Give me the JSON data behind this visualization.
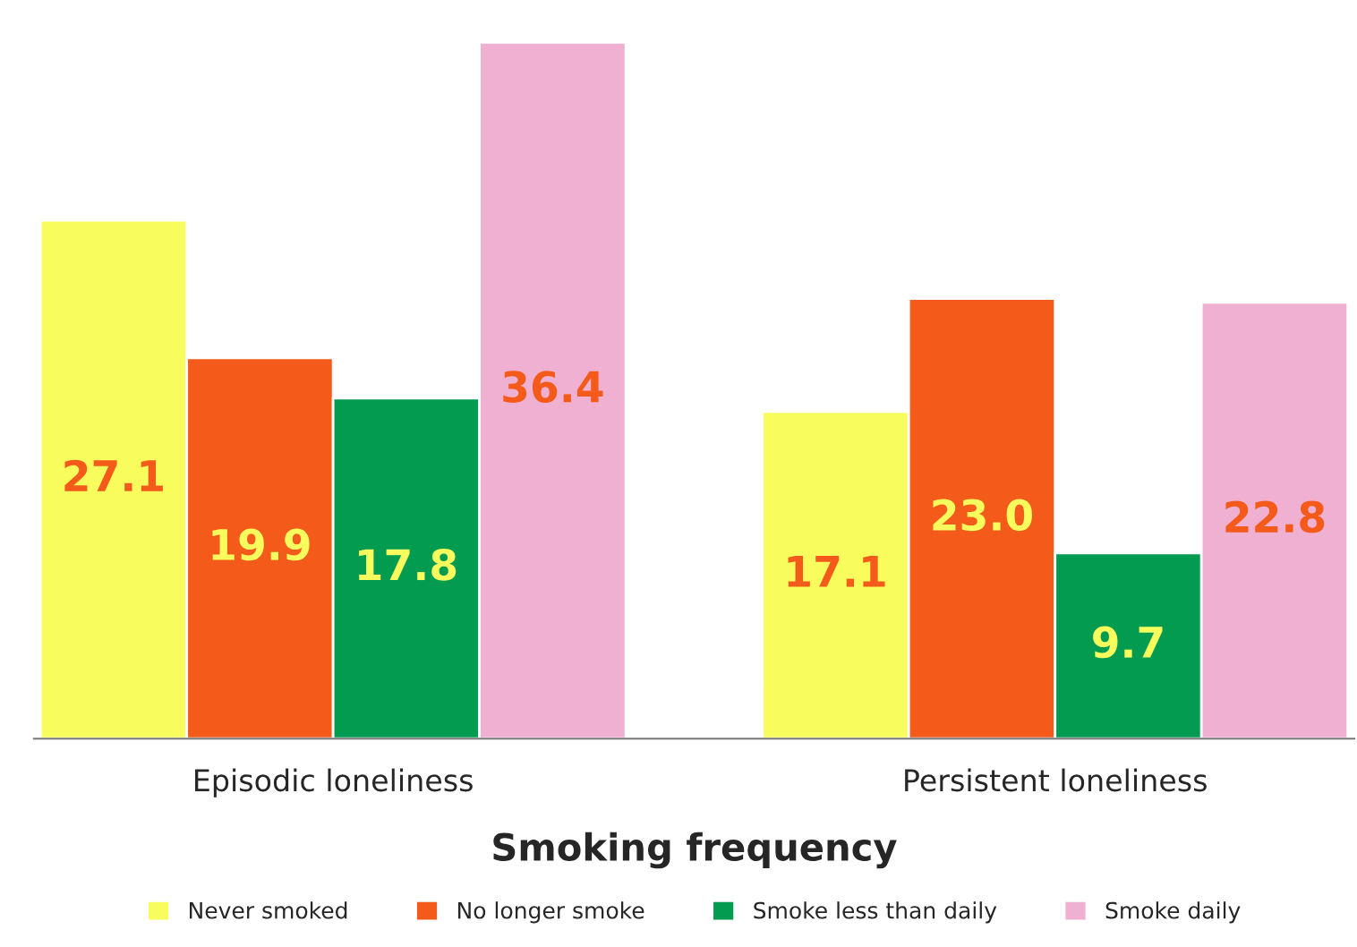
{
  "chart_data": {
    "type": "bar",
    "xlabel": "Smoking frequency",
    "categories": [
      "Episodic loneliness",
      "Persistent loneliness"
    ],
    "series": [
      {
        "name": "Never smoked",
        "color": "#f8fc5c",
        "values": [
          27.1,
          17.1
        ],
        "value_labels": [
          "27.1",
          "17.1"
        ]
      },
      {
        "name": "No longer smoke",
        "color": "#f45b1b",
        "values": [
          19.9,
          23.0
        ],
        "value_labels": [
          "19.9",
          "23.0"
        ]
      },
      {
        "name": "Smoke less than daily",
        "color": "#039b4f",
        "values": [
          17.8,
          9.7
        ],
        "value_labels": [
          "17.8",
          "9.7"
        ]
      },
      {
        "name": "Smoke daily",
        "color": "#f0b0d1",
        "values": [
          36.4,
          22.8
        ],
        "value_labels": [
          "36.4",
          "22.8"
        ]
      }
    ],
    "legend": "bottom",
    "grid": false
  }
}
